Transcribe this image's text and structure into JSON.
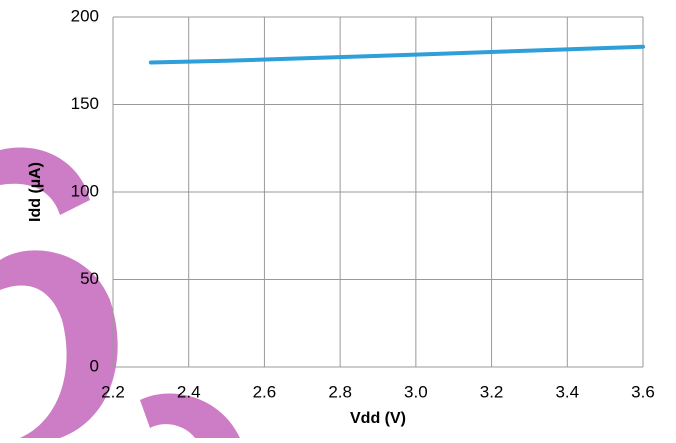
{
  "chart_data": {
    "type": "line",
    "x_label": "Vdd (V)",
    "y_label": "Idd (µA)",
    "x": [
      2.3,
      2.5,
      3.0,
      3.6
    ],
    "series": [
      {
        "name": "Idd",
        "color": "#2e9fd8",
        "values": [
          174,
          175,
          178.5,
          183
        ]
      }
    ],
    "xlim": [
      2.2,
      3.6
    ],
    "xticks": [
      2.2,
      2.4,
      2.6,
      2.8,
      {
        "value": 3,
        "label": "3.0"
      },
      3.2,
      3.4,
      3.6
    ],
    "ylim": [
      0,
      200
    ],
    "yticks": [
      0,
      50,
      100,
      150,
      200
    ],
    "grid": true
  }
}
